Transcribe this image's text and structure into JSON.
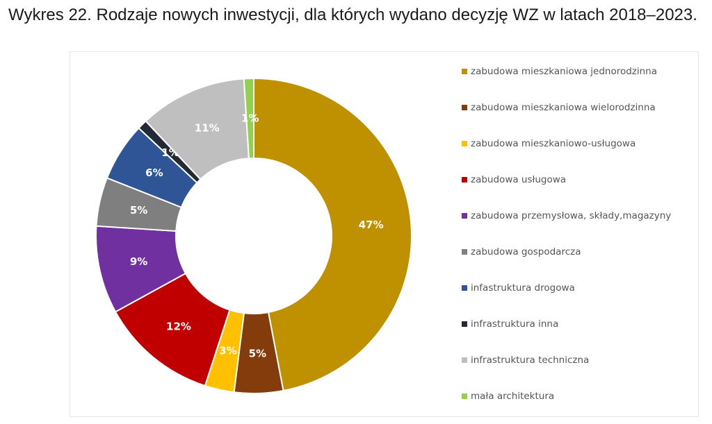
{
  "title": "Wykres 22. Rodzaje nowych inwestycji, dla których wydano decyzję WZ w latach 2018–2023.",
  "chart_data": {
    "type": "pie",
    "title": "Wykres 22. Rodzaje nowych inwestycji, dla których wydano decyzję WZ w latach 2018–2023.",
    "style": "donut",
    "legend_position": "right",
    "categories": [
      "zabudowa mieszkaniowa jednorodzinna",
      "zabudowa mieszkaniowa wielorodzinna",
      "zabudowa mieszkaniowo-usługowa",
      "zabudowa usługowa",
      "zabudowa przemysłowa, składy,magazyny",
      "zabudowa gospodarcza",
      "infastruktura drogowa",
      "infrastruktura inna",
      "infrastruktura techniczna",
      "mała architektura"
    ],
    "values": [
      47,
      5,
      3,
      12,
      9,
      5,
      6,
      1,
      11,
      1
    ],
    "data_labels": [
      "47%",
      "5%",
      "3%",
      "12%",
      "9%",
      "5%",
      "6%",
      "1%",
      "11%",
      "1%"
    ],
    "colors": [
      "#BF9000",
      "#843C0C",
      "#FFC000",
      "#C00000",
      "#7030A0",
      "#7F7F7F",
      "#2F5597",
      "#222A35",
      "#BFBFBF",
      "#92D050"
    ],
    "label_colors": [
      "#ffffff",
      "#ffffff",
      "#ffffff",
      "#ffffff",
      "#ffffff",
      "#ffffff",
      "#ffffff",
      "#ffffff",
      "#ffffff",
      "#ffffff"
    ]
  }
}
